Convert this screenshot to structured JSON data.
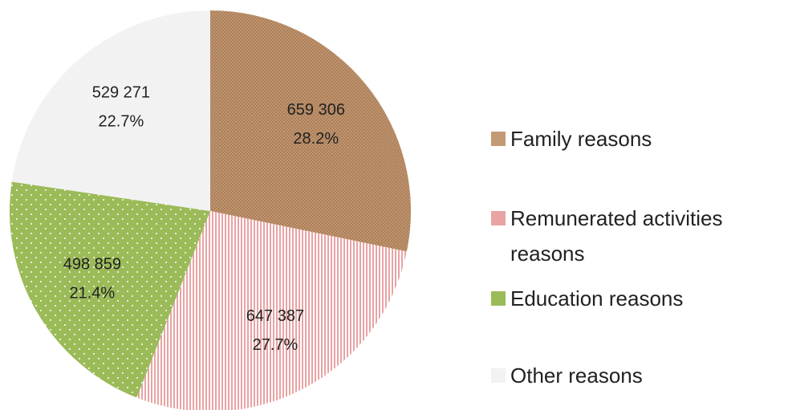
{
  "chart_data": {
    "type": "pie",
    "categories": [
      "Family reasons",
      "Remunerated activities reasons",
      "Education reasons",
      "Other reasons"
    ],
    "values": [
      659306,
      647387,
      498859,
      529271
    ],
    "value_labels": [
      "659 306",
      "647 387",
      "498 859",
      "529 271"
    ],
    "percent_labels": [
      "28.2%",
      "27.7%",
      "21.4%",
      "22.7%"
    ],
    "colors": [
      "#c49a74",
      "#e8a3a3",
      "#9bbb59",
      "#f2f2f2"
    ],
    "legend": "right"
  }
}
